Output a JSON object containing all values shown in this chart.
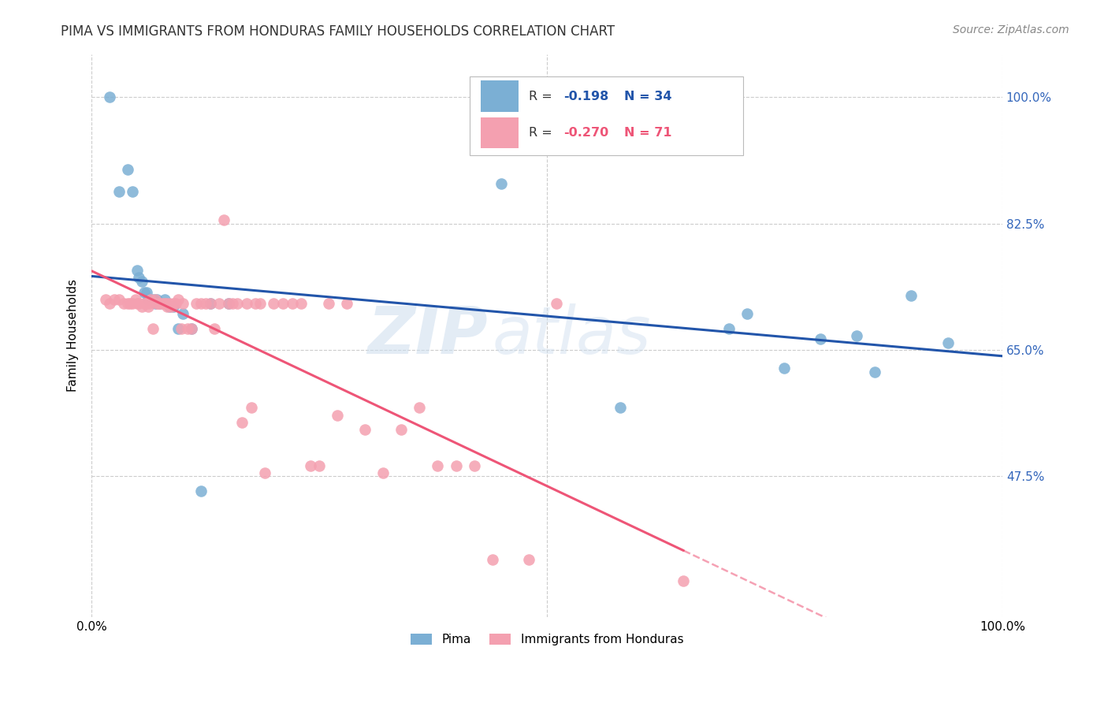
{
  "title": "PIMA VS IMMIGRANTS FROM HONDURAS FAMILY HOUSEHOLDS CORRELATION CHART",
  "source": "Source: ZipAtlas.com",
  "ylabel": "Family Households",
  "legend_label1": "Pima",
  "legend_label2": "Immigrants from Honduras",
  "R1": "-0.198",
  "N1": "34",
  "R2": "-0.270",
  "N2": "71",
  "pima_color": "#7BAFD4",
  "honduras_color": "#F4A0B0",
  "pima_line_color": "#2255AA",
  "honduras_line_color": "#EE5577",
  "pima_x": [
    0.02,
    0.03,
    0.04,
    0.045,
    0.05,
    0.052,
    0.055,
    0.058,
    0.06,
    0.062,
    0.065,
    0.068,
    0.07,
    0.072,
    0.075,
    0.08,
    0.085,
    0.09,
    0.095,
    0.1,
    0.11,
    0.12,
    0.13,
    0.15,
    0.45,
    0.58,
    0.7,
    0.72,
    0.76,
    0.8,
    0.84,
    0.86,
    0.9,
    0.94
  ],
  "pima_y": [
    1.0,
    0.87,
    0.9,
    0.87,
    0.76,
    0.75,
    0.745,
    0.73,
    0.73,
    0.72,
    0.72,
    0.72,
    0.715,
    0.72,
    0.715,
    0.72,
    0.71,
    0.71,
    0.68,
    0.7,
    0.68,
    0.455,
    0.715,
    0.715,
    0.88,
    0.57,
    0.68,
    0.7,
    0.625,
    0.665,
    0.67,
    0.62,
    0.725,
    0.66
  ],
  "honduras_x": [
    0.015,
    0.02,
    0.025,
    0.03,
    0.035,
    0.04,
    0.042,
    0.045,
    0.048,
    0.05,
    0.052,
    0.055,
    0.058,
    0.06,
    0.062,
    0.063,
    0.065,
    0.067,
    0.07,
    0.072,
    0.073,
    0.075,
    0.078,
    0.08,
    0.082,
    0.083,
    0.085,
    0.087,
    0.09,
    0.092,
    0.095,
    0.098,
    0.1,
    0.105,
    0.11,
    0.115,
    0.12,
    0.125,
    0.13,
    0.135,
    0.14,
    0.145,
    0.15,
    0.155,
    0.16,
    0.165,
    0.17,
    0.175,
    0.18,
    0.185,
    0.19,
    0.2,
    0.21,
    0.22,
    0.23,
    0.24,
    0.25,
    0.26,
    0.27,
    0.28,
    0.3,
    0.32,
    0.34,
    0.36,
    0.38,
    0.4,
    0.42,
    0.44,
    0.48,
    0.51,
    0.65
  ],
  "honduras_y": [
    0.72,
    0.715,
    0.72,
    0.72,
    0.715,
    0.715,
    0.715,
    0.715,
    0.72,
    0.715,
    0.715,
    0.71,
    0.715,
    0.715,
    0.71,
    0.715,
    0.72,
    0.68,
    0.72,
    0.715,
    0.715,
    0.715,
    0.715,
    0.715,
    0.715,
    0.71,
    0.715,
    0.71,
    0.715,
    0.715,
    0.72,
    0.68,
    0.715,
    0.68,
    0.68,
    0.715,
    0.715,
    0.715,
    0.715,
    0.68,
    0.715,
    0.83,
    0.715,
    0.715,
    0.715,
    0.55,
    0.715,
    0.57,
    0.715,
    0.715,
    0.48,
    0.715,
    0.715,
    0.715,
    0.715,
    0.49,
    0.49,
    0.715,
    0.56,
    0.715,
    0.54,
    0.48,
    0.54,
    0.57,
    0.49,
    0.49,
    0.49,
    0.36,
    0.36,
    0.715,
    0.33
  ],
  "background_color": "#FFFFFF",
  "grid_color": "#CCCCCC",
  "watermark1": "ZIP",
  "watermark2": "atlas",
  "xlim": [
    0.0,
    1.0
  ],
  "ylim": [
    0.28,
    1.06
  ],
  "yticks": [
    1.0,
    0.825,
    0.65,
    0.475
  ],
  "ytick_labels": [
    "100.0%",
    "82.5%",
    "65.0%",
    "47.5%"
  ]
}
